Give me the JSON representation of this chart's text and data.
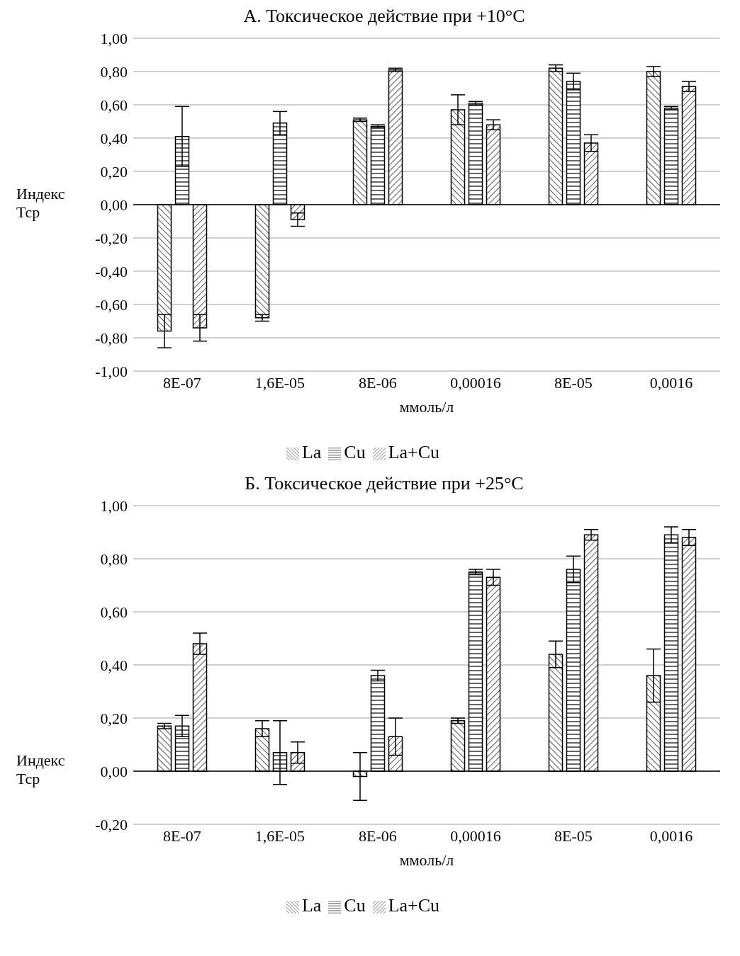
{
  "chart_data": [
    {
      "type": "bar",
      "title": "А. Токсическое действие при +10°C",
      "xlabel": "ммоль/л",
      "ylabel": "Индекс Тср",
      "categories": [
        "8E-07",
        "1,6E-05",
        "8E-06",
        "0,00016",
        "8E-05",
        "0,0016"
      ],
      "ylim": [
        -1,
        1
      ],
      "yticks": [
        {
          "value": -1,
          "label": "-1,00"
        },
        {
          "value": -0.8,
          "label": "-0,80"
        },
        {
          "value": -0.6,
          "label": "-0,60"
        },
        {
          "value": -0.4,
          "label": "-0,40"
        },
        {
          "value": -0.2,
          "label": "-0,20"
        },
        {
          "value": 0,
          "label": "0,00"
        },
        {
          "value": 0.2,
          "label": "0,20"
        },
        {
          "value": 0.4,
          "label": "0,40"
        },
        {
          "value": 0.6,
          "label": "0,60"
        },
        {
          "value": 0.8,
          "label": "0,80"
        },
        {
          "value": 1,
          "label": "1,00"
        }
      ],
      "grid": "y",
      "legend": "bottom",
      "series": [
        {
          "name": "La",
          "color": "#000000",
          "values": [
            -0.76,
            -0.68,
            0.51,
            0.57,
            0.82,
            0.8
          ],
          "errors": [
            0.1,
            0.02,
            0.01,
            0.09,
            0.02,
            0.03
          ]
        },
        {
          "name": "Cu",
          "color": "#000000",
          "values": [
            0.41,
            0.49,
            0.47,
            0.61,
            0.74,
            0.58
          ],
          "errors": [
            0.18,
            0.07,
            0.01,
            0.01,
            0.05,
            0.01
          ]
        },
        {
          "name": "La+Cu",
          "color": "#000000",
          "values": [
            -0.74,
            -0.09,
            0.81,
            0.48,
            0.37,
            0.71
          ],
          "errors": [
            0.08,
            0.04,
            0.01,
            0.03,
            0.05,
            0.03
          ]
        }
      ]
    },
    {
      "type": "bar",
      "title": "Б. Токсическое действие при +25°C",
      "xlabel": "ммоль/л",
      "ylabel": "Индекс Тср",
      "categories": [
        "8E-07",
        "1,6E-05",
        "8E-06",
        "0,00016",
        "8E-05",
        "0,0016"
      ],
      "ylim": [
        -0.2,
        1
      ],
      "yticks": [
        {
          "value": -0.2,
          "label": "-0,20"
        },
        {
          "value": 0,
          "label": "0,00"
        },
        {
          "value": 0.2,
          "label": "0,20"
        },
        {
          "value": 0.4,
          "label": "0,40"
        },
        {
          "value": 0.6,
          "label": "0,60"
        },
        {
          "value": 0.8,
          "label": "0,80"
        },
        {
          "value": 1,
          "label": "1,00"
        }
      ],
      "grid": "y",
      "legend": "bottom",
      "series": [
        {
          "name": "La",
          "color": "#000000",
          "values": [
            0.17,
            0.16,
            -0.02,
            0.19,
            0.44,
            0.36
          ],
          "errors": [
            0.01,
            0.03,
            0.09,
            0.01,
            0.05,
            0.1
          ]
        },
        {
          "name": "Cu",
          "color": "#000000",
          "values": [
            0.17,
            0.07,
            0.36,
            0.75,
            0.76,
            0.89
          ],
          "errors": [
            0.04,
            0.12,
            0.02,
            0.01,
            0.05,
            0.03
          ]
        },
        {
          "name": "La+Cu",
          "color": "#000000",
          "values": [
            0.48,
            0.07,
            0.13,
            0.73,
            0.89,
            0.88
          ],
          "errors": [
            0.04,
            0.04,
            0.07,
            0.03,
            0.02,
            0.03
          ]
        }
      ]
    }
  ]
}
